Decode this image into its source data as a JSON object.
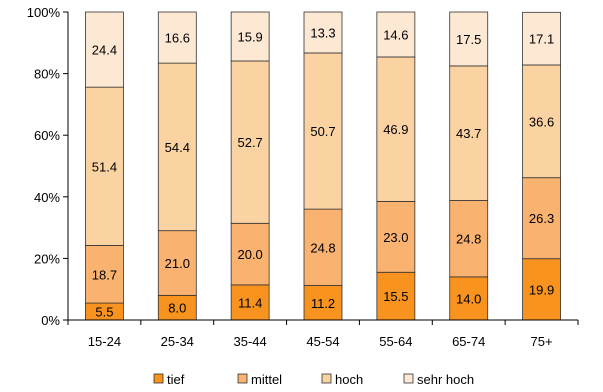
{
  "chart_data": {
    "type": "bar",
    "stacked": true,
    "normalized_percent": true,
    "categories": [
      "15-24",
      "25-34",
      "35-44",
      "45-54",
      "55-64",
      "65-74",
      "75+"
    ],
    "series": [
      {
        "name": "tief",
        "color": "#F7931E",
        "values": [
          5.5,
          8.0,
          11.4,
          11.2,
          15.5,
          14.0,
          19.9
        ]
      },
      {
        "name": "mittel",
        "color": "#F9B270",
        "values": [
          18.7,
          21.0,
          20.0,
          24.8,
          23.0,
          24.8,
          26.3
        ]
      },
      {
        "name": "hoch",
        "color": "#FBD3A3",
        "values": [
          51.4,
          54.4,
          52.7,
          50.7,
          46.9,
          43.7,
          36.6
        ]
      },
      {
        "name": "sehr hoch",
        "color": "#FDE8D4",
        "values": [
          24.4,
          16.6,
          15.9,
          13.3,
          14.6,
          17.5,
          17.1
        ]
      }
    ],
    "data_labels": [
      [
        "5.5",
        "8.0",
        "11.4",
        "11.2",
        "15.5",
        "14.0",
        "19.9"
      ],
      [
        "18.7",
        "21.0",
        "20.0",
        "24.8",
        "23.0",
        "24.8",
        "26.3"
      ],
      [
        "51.4",
        "54.4",
        "52.7",
        "50.7",
        "46.9",
        "43.7",
        "36.6"
      ],
      [
        "24.4",
        "16.6",
        "15.9",
        "13.3",
        "14.6",
        "17.5",
        "17.1"
      ]
    ],
    "y_ticks": [
      "0%",
      "20%",
      "40%",
      "60%",
      "80%",
      "100%"
    ],
    "ylim": [
      0,
      100
    ],
    "title": "",
    "xlabel": "",
    "ylabel": "",
    "legend_position": "bottom",
    "grid": false
  }
}
